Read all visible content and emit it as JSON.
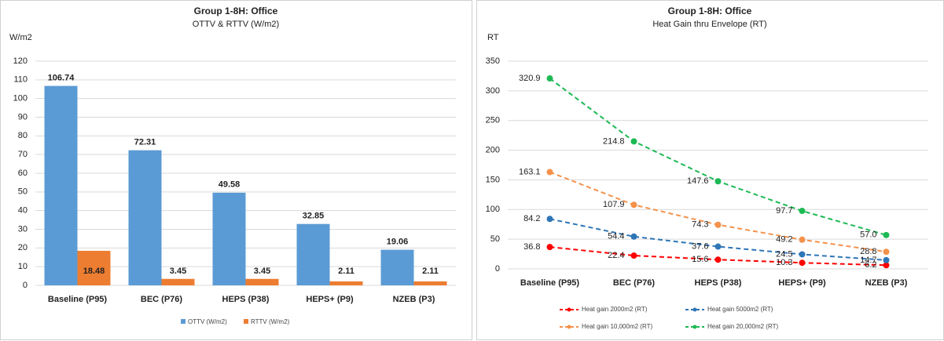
{
  "chart_data": [
    {
      "type": "bar",
      "title": "Group 1-8H: Office",
      "subtitle": "OTTV & RTTV (W/m2)",
      "y_label": "W/m2",
      "categories": [
        "Baseline (P95)",
        "BEC (P76)",
        "HEPS (P38)",
        "HEPS+ (P9)",
        "NZEB (P3)"
      ],
      "series": [
        {
          "name": "OTTV (W/m2)",
          "color": "#5b9bd5",
          "values": [
            106.74,
            72.31,
            49.58,
            32.85,
            19.06
          ]
        },
        {
          "name": "RTTV (W/m2)",
          "color": "#ed7d31",
          "values": [
            18.48,
            3.45,
            3.45,
            2.11,
            2.11
          ]
        }
      ],
      "ylim": [
        0,
        120
      ],
      "yticks": [
        0,
        10,
        20,
        30,
        40,
        50,
        60,
        70,
        80,
        90,
        100,
        110,
        120
      ],
      "grid": true,
      "legend": "bottom"
    },
    {
      "type": "line",
      "title": "Group 1-8H: Office",
      "subtitle": "Heat Gain thru Envelope (RT)",
      "y_label": "RT",
      "categories": [
        "Baseline (P95)",
        "BEC (P76)",
        "HEPS (P38)",
        "HEPS+ (P9)",
        "NZEB (P3)"
      ],
      "series": [
        {
          "name": "Heat gain 2000m2 (RT)",
          "color": "#ff0000",
          "values": [
            36.8,
            22.4,
            15.6,
            10.3,
            6.2
          ],
          "value_labels": [
            "36.8",
            "22.4",
            "15.6",
            "10.3",
            "6.2"
          ]
        },
        {
          "name": "Heat gain 5000m2 (RT)",
          "color": "#2e75b6",
          "values": [
            84.2,
            54.4,
            37.6,
            24.5,
            14.7
          ],
          "value_labels": [
            "84.2",
            "54.4",
            "37.6",
            "24.5",
            "14.7"
          ]
        },
        {
          "name": "Heat gain 10,000m2 (RT)",
          "color": "#f4914a",
          "values": [
            163.1,
            107.9,
            74.3,
            49.2,
            28.8
          ],
          "value_labels": [
            "163.1",
            "107.9",
            "74.3",
            "49.2",
            "28.8"
          ]
        },
        {
          "name": "Heat gain 20,000m2 (RT)",
          "color": "#1db954",
          "values": [
            320.9,
            214.8,
            147.6,
            97.7,
            57.0
          ],
          "value_labels": [
            "320.9",
            "214.8",
            "147.6",
            "97.7",
            "57.0"
          ]
        }
      ],
      "ylim": [
        0,
        350
      ],
      "yticks": [
        0,
        50,
        100,
        150,
        200,
        250,
        300,
        350
      ],
      "grid": true,
      "legend": "bottom"
    }
  ]
}
